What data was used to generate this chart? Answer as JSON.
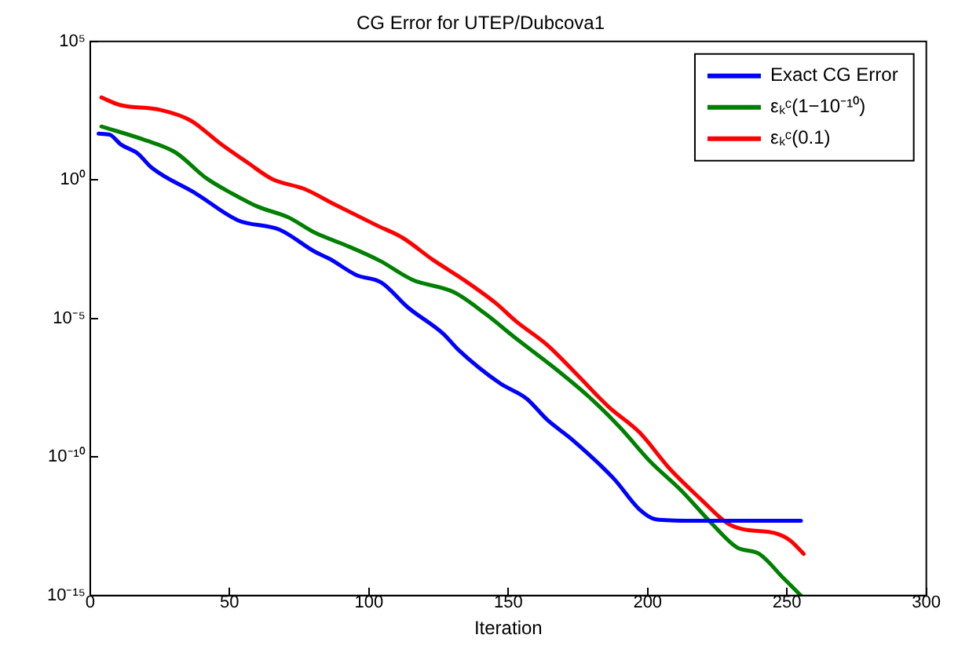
{
  "chart_data": {
    "type": "line",
    "title": "CG Error for UTEP/Dubcova1",
    "xlabel": "Iteration",
    "log": "y",
    "grid": false,
    "legend": "top right",
    "marker": "none",
    "line_style": "solid",
    "xlim": [
      0,
      300
    ],
    "xticks": [
      0,
      50,
      100,
      150,
      200,
      250,
      300
    ],
    "ylim": [
      1e-15,
      100000.0
    ],
    "yticks": [
      {
        "value": 100000.0,
        "label": "10⁵"
      },
      {
        "value": 1,
        "label": "10⁰"
      },
      {
        "value": 1e-05,
        "label": "10⁻⁵"
      },
      {
        "value": 1e-10,
        "label": "10⁻¹⁰"
      },
      {
        "value": 1e-15,
        "label": "10⁻¹⁵"
      }
    ],
    "series": [
      {
        "name": "Exact CG Error",
        "color": "#0000ff",
        "x": [
          3,
          7,
          11,
          17,
          22,
          38,
          53,
          68,
          80.5,
          86,
          95.5,
          104.4,
          114,
          126.7,
          132,
          147,
          156.5,
          164,
          173,
          188,
          197,
          203,
          215.6,
          255
        ],
        "values": [
          47,
          43,
          19,
          9.1,
          2.8,
          0.32,
          0.035,
          0.016,
          0.0026,
          0.0014,
          0.00037,
          0.0002,
          2.5e-05,
          2.8e-06,
          7.6e-07,
          4.6e-08,
          1.3e-08,
          2.2e-09,
          4.2e-10,
          1.6e-11,
          1.3e-12,
          5.6e-13,
          5e-13,
          5e-13
        ]
      },
      {
        "name": "εₖᶜ(1−10⁻¹⁰)",
        "color": "#008000",
        "x": [
          4,
          19,
          30.5,
          41.7,
          51,
          60,
          71,
          80.5,
          91.7,
          104,
          115.6,
          130.5,
          141.7,
          152.8,
          165.5,
          178.6,
          190,
          201,
          212,
          223,
          232,
          240,
          249,
          255
        ],
        "values": [
          85,
          29,
          10,
          1.15,
          0.32,
          0.11,
          0.045,
          0.0126,
          0.0044,
          0.0012,
          0.00025,
          8.9e-05,
          1.5e-05,
          1.9e-06,
          2e-07,
          1.6e-08,
          1.2e-09,
          6.8e-11,
          6.3e-12,
          4e-13,
          5.5e-14,
          3.2e-14,
          4e-15,
          1e-15
        ]
      },
      {
        "name": "εₖᶜ(0.1)",
        "color": "#ff0000",
        "x": [
          4,
          10.6,
          25,
          36,
          47,
          56.5,
          65.5,
          76.7,
          88,
          102.8,
          112,
          123,
          134,
          145.5,
          152.8,
          164,
          175,
          186,
          197,
          208,
          219.4,
          228.7,
          234,
          245.6,
          251,
          256
        ],
        "values": [
          950,
          510,
          340,
          140,
          19.5,
          4.2,
          1.05,
          0.48,
          0.126,
          0.023,
          0.0083,
          0.0013,
          0.00025,
          3.6e-05,
          7.9e-06,
          1.1e-06,
          8.7e-08,
          6.5e-09,
          7.9e-10,
          3.7e-11,
          2.8e-12,
          4e-13,
          2.5e-13,
          1.8e-13,
          1e-13,
          3.2e-14
        ]
      }
    ]
  }
}
